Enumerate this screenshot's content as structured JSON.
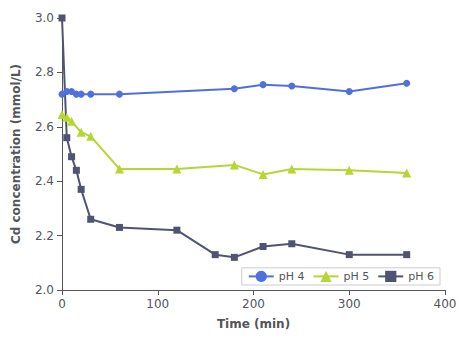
{
  "chart_data": {
    "type": "line",
    "xlabel": "Time (min)",
    "ylabel": "Cd concentration (mmol/L)",
    "series": [
      {
        "name": "pH 4",
        "marker": "circle",
        "x": [
          0,
          5,
          10,
          15,
          20,
          30,
          60,
          180,
          210,
          240,
          300,
          360
        ],
        "values": [
          2.72,
          2.73,
          2.73,
          2.72,
          2.72,
          2.72,
          2.72,
          2.74,
          2.755,
          2.75,
          2.73,
          2.76
        ]
      },
      {
        "name": "pH 5",
        "marker": "triangle",
        "x": [
          0,
          5,
          10,
          20,
          30,
          60,
          120,
          180,
          210,
          240,
          300,
          360
        ],
        "values": [
          2.645,
          2.635,
          2.62,
          2.58,
          2.565,
          2.445,
          2.445,
          2.46,
          2.425,
          2.445,
          2.44,
          2.43
        ]
      },
      {
        "name": "pH 6",
        "marker": "square",
        "x": [
          0,
          5,
          10,
          15,
          20,
          30,
          60,
          120,
          160,
          180,
          210,
          240,
          300,
          360
        ],
        "values": [
          3.0,
          2.56,
          2.49,
          2.44,
          2.37,
          2.26,
          2.23,
          2.22,
          2.13,
          2.12,
          2.16,
          2.17,
          2.13,
          2.13
        ]
      }
    ],
    "xlim": [
      0,
      400
    ],
    "ylim": [
      2.0,
      3.0
    ],
    "xticks": [
      0,
      100,
      200,
      300,
      400
    ],
    "yticks": [
      {
        "value": 2.0,
        "label": "2.0"
      },
      2.2,
      2.4,
      2.6,
      2.8,
      {
        "value": 3.0,
        "label": "3.0"
      }
    ],
    "grid": false,
    "legend": "lower right"
  }
}
